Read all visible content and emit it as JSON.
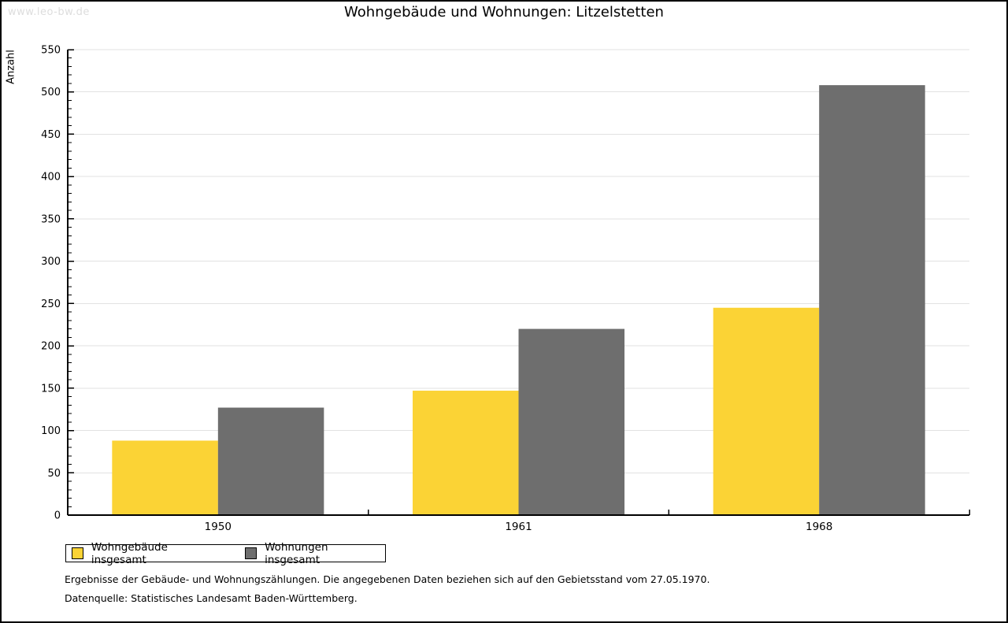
{
  "watermark": "www.leo-bw.de",
  "title": "Wohngebäude und Wohnungen: Litzelstetten",
  "colors": {
    "series_yellow": "#FBD335",
    "series_gray": "#6E6E6E",
    "grid": "#E2E2E2",
    "axis": "#000000",
    "watermark": "#DDDDDD"
  },
  "chart_data": {
    "type": "bar",
    "title": "Wohngebäude und Wohnungen: Litzelstetten",
    "categories": [
      "1950",
      "1961",
      "1968"
    ],
    "series": [
      {
        "name": "Wohngebäude insgesamt",
        "color": "#FBD335",
        "values": [
          88,
          147,
          245
        ]
      },
      {
        "name": "Wohnungen insgesamt",
        "color": "#6E6E6E",
        "values": [
          127,
          220,
          508
        ]
      }
    ],
    "xlabel": "",
    "ylabel": "Anzahl",
    "ylim": [
      0,
      550
    ],
    "ytick_step": 50,
    "yminor_step": 10,
    "grid": true,
    "legend_position": "bottom-left"
  },
  "footer": {
    "line1": "Ergebnisse der Gebäude- und Wohnungszählungen. Die angegebenen Daten beziehen sich auf den Gebietsstand vom 27.05.1970.",
    "line2": "Datenquelle: Statistisches Landesamt Baden-Württemberg."
  }
}
